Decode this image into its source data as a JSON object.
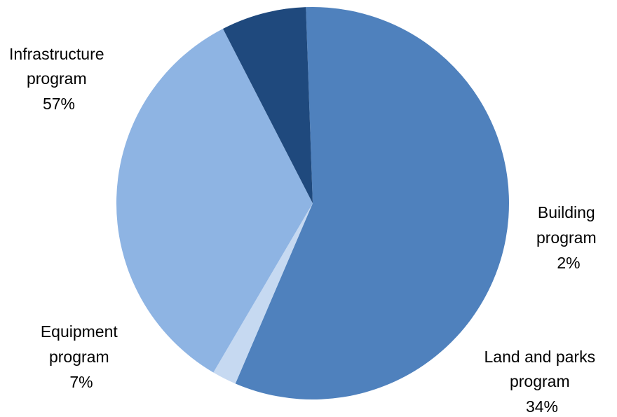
{
  "chart_data": {
    "type": "pie",
    "slices": [
      {
        "name_lines": [
          "Infrastructure",
          "program"
        ],
        "value": 57,
        "value_label": "57%",
        "color": "#4f81bd"
      },
      {
        "name_lines": [
          "Building",
          "program"
        ],
        "value": 2,
        "value_label": "2%",
        "color": "#c6d9f1"
      },
      {
        "name_lines": [
          "Land and parks",
          "program"
        ],
        "value": 34,
        "value_label": "34%",
        "color": "#8eb4e3"
      },
      {
        "name_lines": [
          "Equipment",
          "program"
        ],
        "value": 7,
        "value_label": "7%",
        "color": "#1f497d"
      }
    ],
    "legend": "none"
  }
}
